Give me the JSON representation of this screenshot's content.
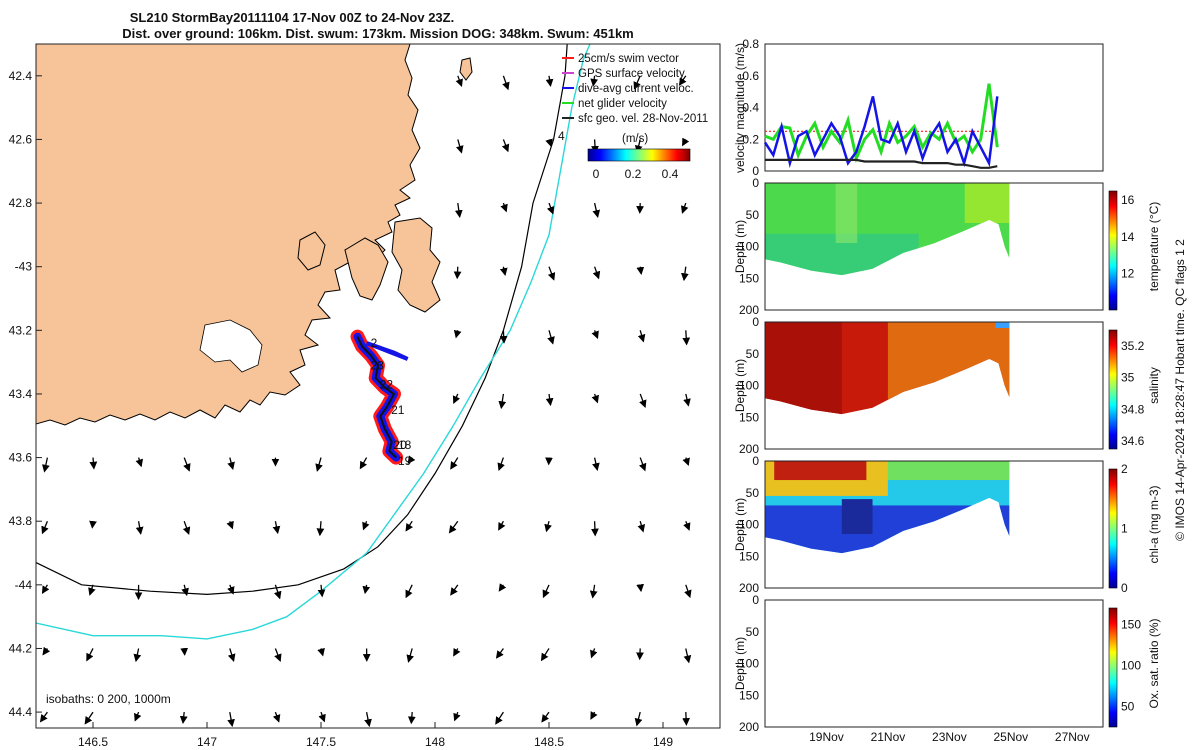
{
  "title_line1": "SL210 StormBay20111104 17-Nov 00Z to 24-Nov 23Z.",
  "title_line2": "Dist. over ground: 106km. Dist. swum: 173km. Mission DOG: 348km. Swum: 451km",
  "colors": {
    "land": "#f7c499",
    "coast": "#000000",
    "iso200": "#000000",
    "iso1000": "#2ad8d8",
    "swim": "#ff1a1a",
    "glider": "#1414e6",
    "net": "#22dd22",
    "sfc": "#222222",
    "gps": "#cc44cc"
  },
  "chart_data": [
    {
      "type": "map",
      "title": "SL210 StormBay20111104 17-Nov 00Z to 24-Nov 23Z.",
      "xlim": [
        146.25,
        149.25
      ],
      "ylim": [
        -44.45,
        -42.3
      ],
      "xticks": [
        146.5,
        147,
        147.5,
        148,
        148.5,
        149
      ],
      "xtick_labels": [
        "146.5",
        "147",
        "147.5",
        "148",
        "148.5",
        "149"
      ],
      "yticks": [
        -42.4,
        -42.6,
        -42.8,
        -43,
        -43.2,
        -43.4,
        -43.6,
        -43.8,
        -44,
        -44.2,
        -44.4
      ],
      "ytick_labels": [
        "42.4",
        "42.6",
        "42.8",
        "-43",
        "43.2",
        "43.4",
        "43.6",
        "43.8",
        "-44",
        "44.2",
        "44.4"
      ],
      "legend": [
        {
          "label": "25cm/s swim vector",
          "color": "#ff1a1a"
        },
        {
          "label": "GPS surface velocity",
          "color": "#cc44cc"
        },
        {
          "label": "dive-avg current veloc.",
          "color": "#1414e6"
        },
        {
          "label": "net glider velocity",
          "color": "#22dd22"
        },
        {
          "label": "sfc geo. vel. 28-Nov-2011",
          "color": "#222222"
        }
      ],
      "colorbar": {
        "label": "(m/s)",
        "ticks": [
          "0",
          "0.2",
          "0.4"
        ],
        "range": [
          0,
          0.5
        ]
      },
      "isobath_label": "isobaths: 0   200, 1000m",
      "vector_label": "4",
      "track": [
        [
          147.66,
          -43.22
        ],
        [
          147.68,
          -43.25
        ],
        [
          147.72,
          -43.28
        ],
        [
          147.75,
          -43.31
        ],
        [
          147.74,
          -43.35
        ],
        [
          147.78,
          -43.38
        ],
        [
          147.82,
          -43.4
        ],
        [
          147.79,
          -43.44
        ],
        [
          147.76,
          -43.47
        ],
        [
          147.78,
          -43.51
        ],
        [
          147.81,
          -43.55
        ],
        [
          147.8,
          -43.58
        ],
        [
          147.83,
          -43.6
        ]
      ],
      "day_labels": [
        {
          "label": "2",
          "lon": 147.7,
          "lat": -43.24
        },
        {
          "label": "23",
          "lon": 147.7,
          "lat": -43.31
        },
        {
          "label": "22",
          "lon": 147.74,
          "lat": -43.37
        },
        {
          "label": "21",
          "lon": 147.79,
          "lat": -43.45
        },
        {
          "label": "20",
          "lon": 147.8,
          "lat": -43.56
        },
        {
          "label": "18",
          "lon": 147.82,
          "lat": -43.56
        },
        {
          "label": "19",
          "lon": 147.82,
          "lat": -43.61
        }
      ],
      "isobath_200": [
        [
          146.25,
          -43.93
        ],
        [
          146.45,
          -44.0
        ],
        [
          146.75,
          -44.02
        ],
        [
          147.0,
          -44.03
        ],
        [
          147.2,
          -44.02
        ],
        [
          147.4,
          -44.0
        ],
        [
          147.6,
          -43.95
        ],
        [
          147.75,
          -43.88
        ],
        [
          147.88,
          -43.78
        ],
        [
          148.0,
          -43.65
        ],
        [
          148.12,
          -43.5
        ],
        [
          148.22,
          -43.35
        ],
        [
          148.3,
          -43.2
        ],
        [
          148.38,
          -43.0
        ],
        [
          148.43,
          -42.8
        ],
        [
          148.52,
          -42.6
        ],
        [
          148.57,
          -42.4
        ],
        [
          148.58,
          -42.3
        ]
      ],
      "isobath_1000": [
        [
          146.25,
          -44.12
        ],
        [
          146.5,
          -44.16
        ],
        [
          146.8,
          -44.16
        ],
        [
          147.0,
          -44.17
        ],
        [
          147.2,
          -44.14
        ],
        [
          147.35,
          -44.1
        ],
        [
          147.5,
          -44.02
        ],
        [
          147.7,
          -43.9
        ],
        [
          147.85,
          -43.75
        ],
        [
          147.95,
          -43.65
        ],
        [
          148.08,
          -43.5
        ],
        [
          148.2,
          -43.35
        ],
        [
          148.33,
          -43.2
        ],
        [
          148.42,
          -43.05
        ],
        [
          148.5,
          -42.9
        ],
        [
          148.55,
          -42.7
        ],
        [
          148.6,
          -42.5
        ],
        [
          148.65,
          -42.35
        ],
        [
          148.68,
          -42.3
        ]
      ]
    },
    {
      "type": "line",
      "ylabel": "velocity magnitude (m/s)",
      "ylim": [
        0,
        0.8
      ],
      "yticks": [
        "0",
        "0.2",
        "0.4",
        "0.6",
        "0.8"
      ],
      "series": [
        {
          "name": "swim (25cm/s)",
          "values": [
            0.25,
            0.25,
            0.25,
            0.25,
            0.25,
            0.25,
            0.25,
            0.25,
            0.25,
            0.25,
            0.25,
            0.25,
            0.25,
            0.25,
            0.25,
            0.25,
            0.25,
            0.25,
            0.25,
            0.25,
            0.25,
            0.25,
            0.25,
            0.25,
            0.25,
            0.25,
            0.25,
            0.25,
            0.25
          ]
        },
        {
          "name": "net glider velocity",
          "values": [
            0.22,
            0.2,
            0.28,
            0.27,
            0.1,
            0.22,
            0.3,
            0.15,
            0.25,
            0.18,
            0.32,
            0.08,
            0.2,
            0.26,
            0.12,
            0.3,
            0.18,
            0.22,
            0.28,
            0.15,
            0.24,
            0.2,
            0.3,
            0.18,
            0.22,
            0.12,
            0.2,
            0.55,
            0.15
          ]
        },
        {
          "name": "dive-avg current",
          "values": [
            0.18,
            0.1,
            0.28,
            0.05,
            0.22,
            0.25,
            0.1,
            0.2,
            0.3,
            0.22,
            0.05,
            0.12,
            0.28,
            0.47,
            0.2,
            0.18,
            0.3,
            0.12,
            0.25,
            0.08,
            0.22,
            0.3,
            0.12,
            0.2,
            0.05,
            0.25,
            0.15,
            0.05,
            0.47
          ]
        },
        {
          "name": "sfc",
          "values": [
            0.07,
            0.07,
            0.07,
            0.07,
            0.07,
            0.07,
            0.07,
            0.07,
            0.07,
            0.07,
            0.07,
            0.07,
            0.06,
            0.06,
            0.06,
            0.06,
            0.06,
            0.06,
            0.06,
            0.05,
            0.05,
            0.05,
            0.05,
            0.04,
            0.04,
            0.03,
            0.02,
            0.02,
            0.03
          ]
        }
      ]
    },
    {
      "type": "heatmap",
      "ylabel": "Depth (m)",
      "clabel": "temperature (°C)",
      "ylim": [
        0,
        200
      ],
      "yticks": [
        "0",
        "50",
        "100",
        "150",
        "200"
      ],
      "cticks": [
        "16",
        "14",
        "12"
      ],
      "crange": [
        10,
        16.5
      ]
    },
    {
      "type": "heatmap",
      "ylabel": "Depth (m)",
      "clabel": "salinity",
      "ylim": [
        0,
        200
      ],
      "yticks": [
        "0",
        "50",
        "100",
        "150",
        "200"
      ],
      "cticks": [
        "35.2",
        "35",
        "34.8",
        "34.6"
      ],
      "crange": [
        34.55,
        35.3
      ]
    },
    {
      "type": "heatmap",
      "ylabel": "Depth (m)",
      "clabel": "chl-a (mg m-3)",
      "ylim": [
        0,
        200
      ],
      "yticks": [
        "0",
        "50",
        "100",
        "150",
        "200"
      ],
      "cticks": [
        "2",
        "1",
        "0"
      ],
      "crange": [
        0,
        2
      ]
    },
    {
      "type": "heatmap",
      "ylabel": "Depth (m)",
      "clabel": "Ox. sat. ratio (%)",
      "ylim": [
        0,
        200
      ],
      "yticks": [
        "0",
        "50",
        "100",
        "150",
        "200"
      ],
      "cticks": [
        "150",
        "100",
        "50"
      ],
      "crange": [
        25,
        170
      ],
      "xtick_labels": [
        "19Nov",
        "21Nov",
        "23Nov",
        "25Nov",
        "27Nov"
      ]
    }
  ],
  "footer": "© IMOS 14-Apr-2024 18:28:47 Hobart time. QC flags 1  2"
}
